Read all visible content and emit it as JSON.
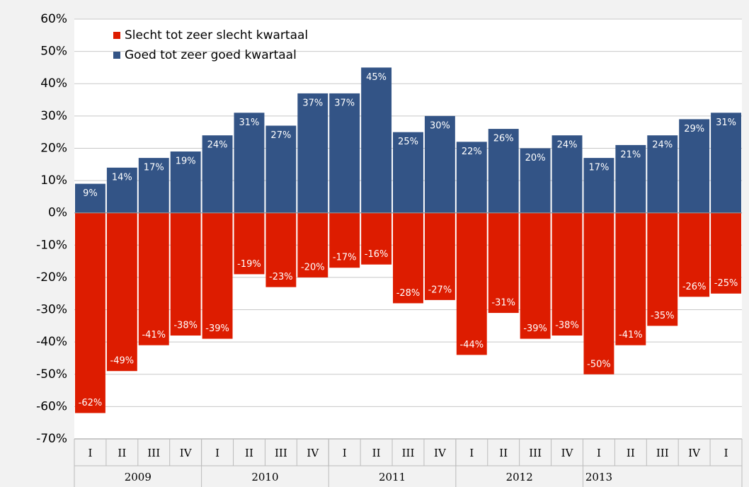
{
  "chart_data": {
    "type": "bar",
    "categories": [
      "I",
      "II",
      "III",
      "IV",
      "I",
      "II",
      "III",
      "IV",
      "I",
      "II",
      "III",
      "IV",
      "I",
      "II",
      "III",
      "IV",
      "I",
      "II",
      "III",
      "IV",
      "I"
    ],
    "year_groups": [
      {
        "label": "2009",
        "count": 4
      },
      {
        "label": "2010",
        "count": 4
      },
      {
        "label": "2011",
        "count": 4
      },
      {
        "label": "2012",
        "count": 4
      },
      {
        "label": "2013",
        "count": 1
      }
    ],
    "series": [
      {
        "name": "Slecht tot zeer slecht kwartaal",
        "color": "#dd1c00",
        "values": [
          -62,
          -49,
          -41,
          -38,
          -39,
          -19,
          -23,
          -20,
          -17,
          -16,
          -28,
          -27,
          -44,
          -31,
          -39,
          -38,
          -50,
          -41,
          -35,
          -26,
          -25
        ],
        "value_labels": [
          "-62%",
          "-49%",
          "-41%",
          "-38%",
          "-39%",
          "-19%",
          "-23%",
          "-20%",
          "-17%",
          "-16%",
          "-28%",
          "-27%",
          "-44%",
          "-31%",
          "-39%",
          "-38%",
          "-50%",
          "-41%",
          "-35%",
          "-26%",
          "-25%"
        ]
      },
      {
        "name": "Goed tot zeer goed kwartaal",
        "color": "#335486",
        "values": [
          9,
          14,
          17,
          19,
          24,
          31,
          27,
          37,
          37,
          45,
          25,
          30,
          22,
          26,
          20,
          24,
          17,
          21,
          24,
          29,
          31
        ],
        "value_labels": [
          "9%",
          "14%",
          "17%",
          "19%",
          "24%",
          "31%",
          "27%",
          "37%",
          "37%",
          "45%",
          "25%",
          "30%",
          "22%",
          "26%",
          "20%",
          "24%",
          "17%",
          "21%",
          "24%",
          "29%",
          "31%"
        ]
      }
    ],
    "ylim": [
      -70,
      60
    ],
    "yticks": [
      {
        "value": -70,
        "label": "-70%"
      },
      {
        "value": -60,
        "label": "-60%"
      },
      {
        "value": -50,
        "label": "-50%"
      },
      {
        "value": -40,
        "label": "-40%"
      },
      {
        "value": -30,
        "label": "-30%"
      },
      {
        "value": -20,
        "label": "-20%"
      },
      {
        "value": -10,
        "label": "-10%"
      },
      {
        "value": 0,
        "label": "0%"
      },
      {
        "value": 10,
        "label": "10%"
      },
      {
        "value": 20,
        "label": "20%"
      },
      {
        "value": 30,
        "label": "30%"
      },
      {
        "value": 40,
        "label": "40%"
      },
      {
        "value": 50,
        "label": "50%"
      },
      {
        "value": 60,
        "label": "60%"
      }
    ],
    "grid": true,
    "legend": "top-left"
  }
}
